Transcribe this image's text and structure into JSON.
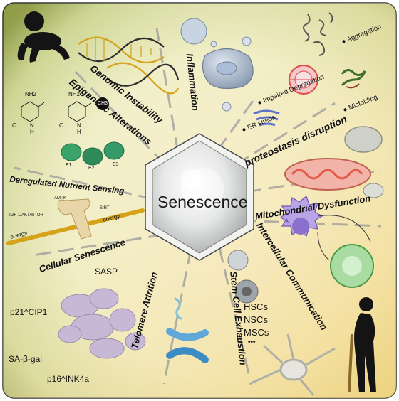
{
  "center": {
    "label": "Senescence"
  },
  "hallmarks": {
    "genomic_instability": "Genomic Instability",
    "epigenetic_alterations": "Epigenetic Alterations",
    "deregulated_nutrient_sensing": "Deregulated Nutrient Sensing",
    "cellular_senescence": "Cellular Senescence",
    "telomere_attrition": "Telomere Attrition",
    "stem_cell_exhaustion": "Stem Cell Exhaustion",
    "intercellular_communication": "Intercellular Communication",
    "mitochondrial_dysfunction": "Mitochondrial Dysfunction",
    "proteostasis_disruption": "proteostasis disruption",
    "inflammation": "Inflammation"
  },
  "proteostasis_items": {
    "aggregation": "Aggregation",
    "impaired_degradation": "Impaired Degradation",
    "misfolding": "Misfolding",
    "er_stress": "ER stress",
    "bullet": "●"
  },
  "epigenetic_items": {
    "nh2_left": "NH2",
    "nh2_right": "NH2",
    "ch3": "CH3",
    "o_left": "O",
    "o_right": "O",
    "n_left": "N",
    "n_right": "N",
    "h_left": "H",
    "h_right": "H",
    "e1": "E1",
    "e2": "E2",
    "e3": "E3"
  },
  "nutrient_items": {
    "ampk": "AMPK",
    "sirt": "SIRT",
    "igf": "IGF-1/AKT/mTOR",
    "energy_left": "energy",
    "energy_right": "energy"
  },
  "senescence_markers": {
    "sasp": "SASP",
    "p21": "p21^CIP1",
    "sa_beta_gal": "SA-β-gal",
    "p16": "p16^INK4a"
  },
  "stem_cells": {
    "hscs": "HSCs",
    "nscs": "NSCs",
    "mscs": "MSCs",
    "ellipsis": "•••"
  },
  "colors": {
    "bg_corner": "#7f8f3a",
    "bg_mid": "#eef0c6",
    "bg_right": "#f3d98f",
    "dna_gold": "#d6a21a",
    "mito_red": "#e45a4a",
    "immune_purple": "#9a84d6",
    "cell_green": "#8fcf8a",
    "telomere_blue": "#5fa8d8"
  }
}
